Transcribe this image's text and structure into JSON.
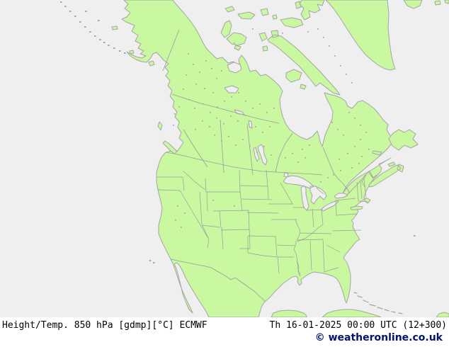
{
  "caption": {
    "title": "Height/Temp. 850 hPa [gdmp][°C] ECMWF",
    "datetime": "Th 16-01-2025 00:00 UTC (12+300)",
    "copyright": "© weatheronline.co.uk"
  },
  "colors": {
    "land": "#c9f8a1",
    "ocean": "#efefef",
    "coast": "#a5a5a5",
    "inner_border": "#9b9b9b",
    "caption_bg": "#ffffff",
    "caption_text": "#000000",
    "copyright": "#00156e"
  }
}
